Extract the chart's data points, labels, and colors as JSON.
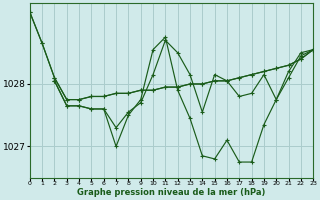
{
  "title": "Graphe pression niveau de la mer (hPa)",
  "bg_color": "#d0eaea",
  "line_color": "#1a5c1a",
  "grid_color": "#aacccc",
  "xlim": [
    0,
    23
  ],
  "ylim": [
    1026.5,
    1029.3
  ],
  "yticks": [
    1027.0,
    1028.0
  ],
  "xticks": [
    0,
    1,
    2,
    3,
    4,
    5,
    6,
    7,
    8,
    9,
    10,
    11,
    12,
    13,
    14,
    15,
    16,
    17,
    18,
    19,
    20,
    21,
    22,
    23
  ],
  "series": [
    {
      "x": [
        0,
        1,
        2,
        3,
        4,
        5,
        6,
        7,
        8,
        9,
        10,
        11,
        12,
        13,
        14,
        15,
        16,
        17,
        18,
        19,
        20,
        21,
        22,
        23
      ],
      "y": [
        1029.15,
        1028.65,
        1028.1,
        1027.75,
        1027.75,
        1027.8,
        1027.8,
        1027.85,
        1027.85,
        1027.9,
        1027.9,
        1027.95,
        1027.95,
        1028.0,
        1028.0,
        1028.05,
        1028.05,
        1028.1,
        1028.15,
        1028.2,
        1028.25,
        1028.3,
        1028.4,
        1028.55
      ]
    },
    {
      "x": [
        0,
        1,
        2,
        3,
        4,
        5,
        6,
        7,
        8,
        9,
        10,
        11,
        12,
        13,
        14,
        15,
        16,
        17,
        18,
        19,
        20,
        21,
        22,
        23
      ],
      "y": [
        1029.15,
        1028.65,
        1028.1,
        1027.75,
        1027.75,
        1027.8,
        1027.8,
        1027.85,
        1027.85,
        1027.9,
        1027.9,
        1027.95,
        1027.95,
        1028.0,
        1028.0,
        1028.05,
        1028.05,
        1028.1,
        1028.15,
        1028.2,
        1028.25,
        1028.3,
        1028.4,
        1028.55
      ]
    },
    {
      "x": [
        2,
        3,
        4,
        5,
        6,
        7,
        8,
        9,
        10,
        11,
        12,
        13,
        14,
        15,
        16,
        17,
        18,
        19,
        20,
        21,
        22,
        23
      ],
      "y": [
        1028.05,
        1027.65,
        1027.65,
        1027.6,
        1027.6,
        1027.3,
        1027.55,
        1027.7,
        1028.15,
        1028.7,
        1028.5,
        1028.15,
        1027.55,
        1028.15,
        1028.05,
        1027.8,
        1027.85,
        1028.15,
        1027.75,
        1028.2,
        1028.5,
        1028.55
      ]
    },
    {
      "x": [
        2,
        3,
        4,
        5,
        6,
        7,
        8,
        9,
        10,
        11,
        12,
        13,
        14,
        15,
        16,
        17,
        18,
        19,
        20,
        21,
        22,
        23
      ],
      "y": [
        1028.05,
        1027.65,
        1027.65,
        1027.6,
        1027.6,
        1027.0,
        1027.5,
        1027.75,
        1028.55,
        1028.75,
        1027.9,
        1027.45,
        1026.85,
        1026.8,
        1027.1,
        1026.75,
        1026.75,
        1027.35,
        1027.75,
        1028.1,
        1028.45,
        1028.55
      ]
    }
  ]
}
